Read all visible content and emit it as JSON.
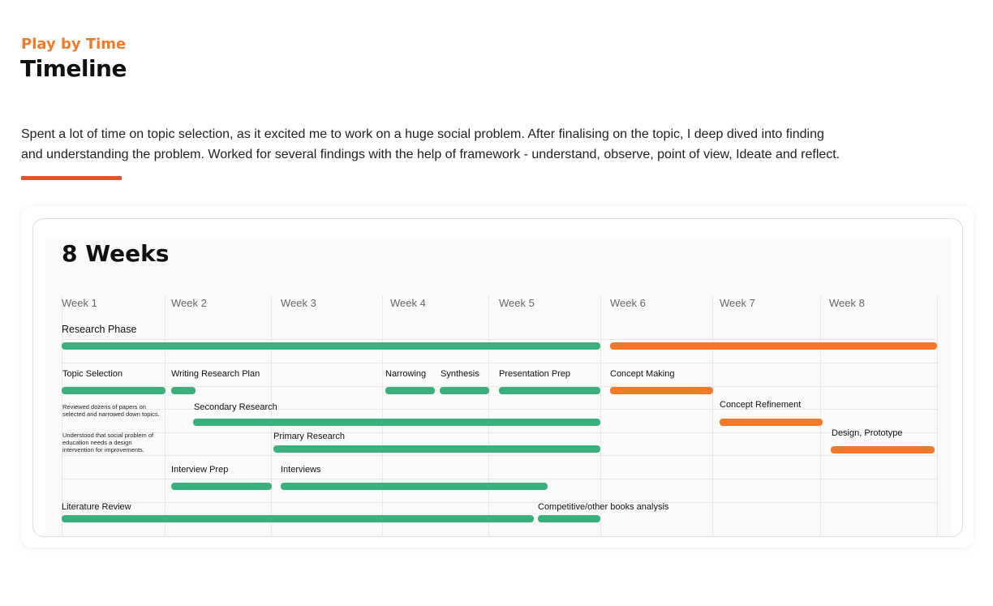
{
  "header": {
    "eyebrow": "Play by Time",
    "title": "Timeline",
    "intro": "Spent a lot of time on topic selection, as it excited me to work on a huge social problem. After finalising on the topic, I deep dived into finding and understanding the problem. Worked for several findings with the help of framework - understand, observe, point of view, Ideate and reflect."
  },
  "colors": {
    "accent_orange": "#f07a27",
    "underline_red": "#e4542d",
    "bar_green": "#3bb07d",
    "bar_orange": "#f07a27"
  },
  "timeline": {
    "title": "8 Weeks",
    "weeks": [
      "Week 1",
      "Week 2",
      "Week 3",
      "Week 4",
      "Week 5",
      "Week 6",
      "Week 7",
      "Week 8"
    ],
    "phase_label": "Research Phase",
    "tasks": {
      "topic_selection": "Topic Selection",
      "writing_research_plan": "Writing Research Plan",
      "narrowing": "Narrowing",
      "synthesis": "Synthesis",
      "presentation_prep": "Presentation Prep",
      "concept_making": "Concept Making",
      "secondary_research": "Secondary Research",
      "concept_refinement": "Concept Refinement",
      "primary_research": "Primary Research",
      "design_prototype": "Design, Prototype",
      "interview_prep": "Interview Prep",
      "interviews": "Interviews",
      "literature_review": "Literature Review",
      "competitive_analysis": "Competitive/other books analysis"
    },
    "notes": {
      "note_1": "Reviewed dozens of papers on selected and narrowed down topics.",
      "note_2": "Understood that social problem of education needs a design intervention for improvements."
    }
  }
}
